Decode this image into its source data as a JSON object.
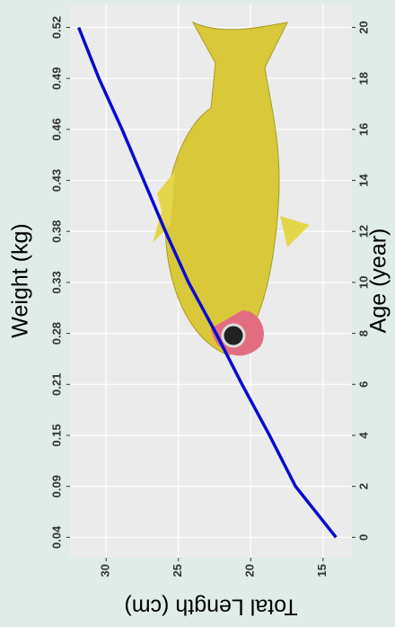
{
  "chart_data": {
    "type": "line",
    "x_label": "Age (year)",
    "y_label": "Total Length (cm)",
    "x2_label": "Weight (kg)",
    "x": [
      0,
      2,
      4,
      6,
      8,
      10,
      12,
      14,
      16,
      18,
      20
    ],
    "values": [
      14.1,
      16.9,
      18.7,
      20.6,
      22.4,
      24.3,
      25.9,
      27.4,
      28.9,
      30.5,
      31.9
    ],
    "color": "#0a0ad0",
    "xlim": [
      -0.8,
      20.9
    ],
    "ylim": [
      13,
      32.5
    ],
    "xticks": [
      0,
      2,
      4,
      6,
      8,
      10,
      12,
      14,
      16,
      18,
      20
    ],
    "yticks": [
      15,
      20,
      25,
      30
    ],
    "x2ticks": [
      {
        "value": 0,
        "label": "0.04"
      },
      {
        "value": 2,
        "label": "0.09"
      },
      {
        "value": 4,
        "label": "0.15"
      },
      {
        "value": 6,
        "label": "0.21"
      },
      {
        "value": 8,
        "label": "0.28"
      },
      {
        "value": 10,
        "label": "0.33"
      },
      {
        "value": 12,
        "label": "0.38"
      },
      {
        "value": 14,
        "label": "0.43"
      },
      {
        "value": 16,
        "label": "0.46"
      },
      {
        "value": 18,
        "label": "0.49"
      },
      {
        "value": 20,
        "label": "0.52"
      }
    ],
    "grid": true
  }
}
